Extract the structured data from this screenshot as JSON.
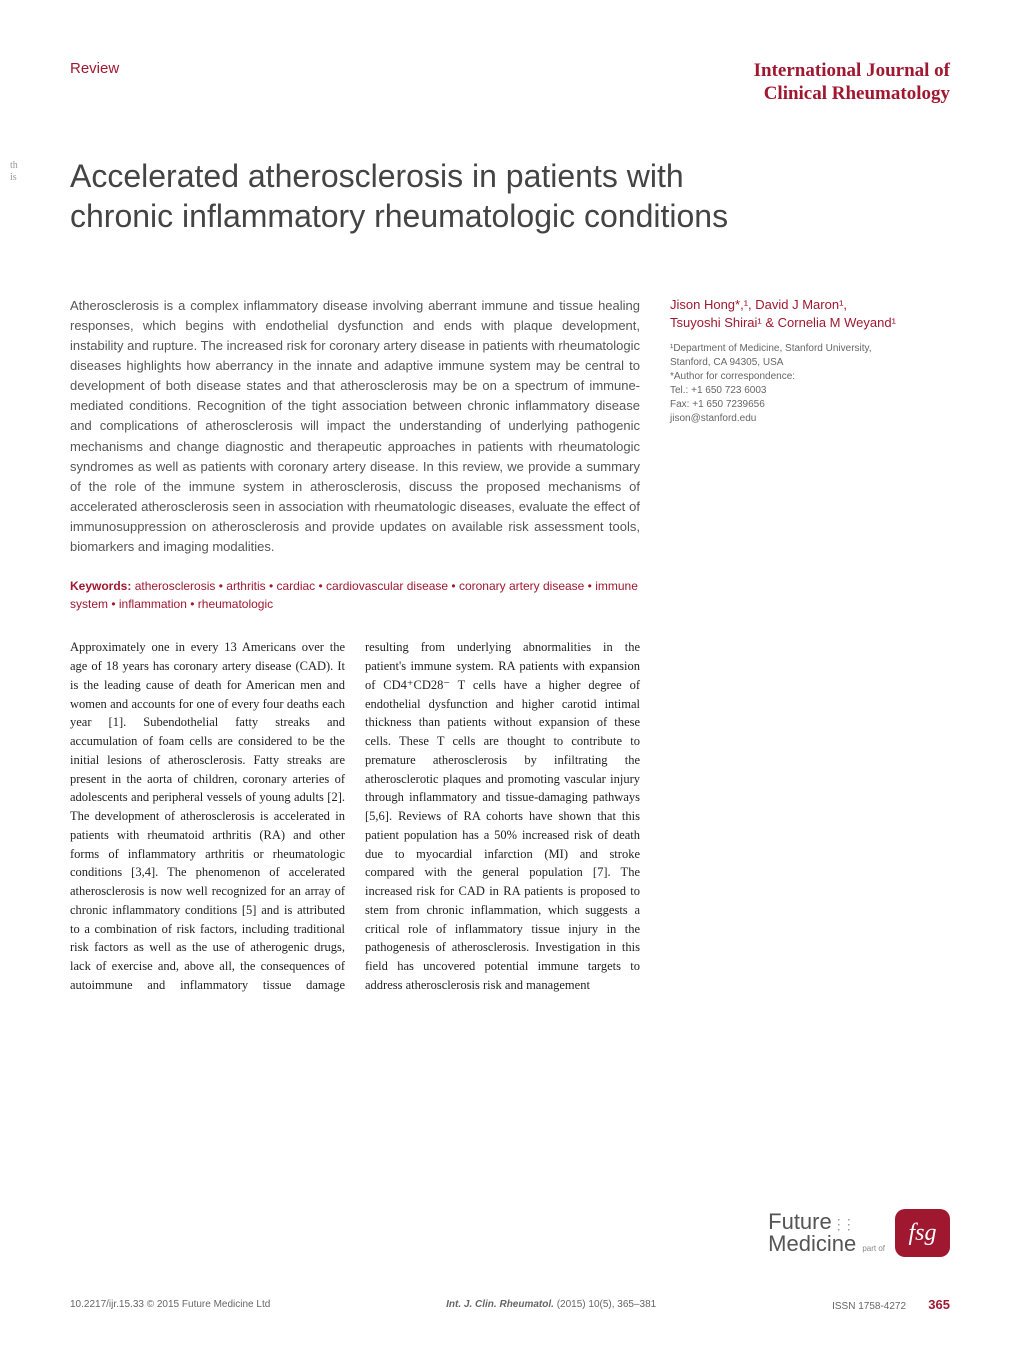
{
  "header": {
    "review_label": "Review",
    "journal_line1": "International Journal of",
    "journal_line2": "Clinical Rheumatology"
  },
  "side_text": {
    "line1": "th",
    "line2": "is"
  },
  "title": "Accelerated atherosclerosis in patients with chronic inflammatory rheumatologic conditions",
  "abstract": "Atherosclerosis is a complex inflammatory disease involving aberrant immune and tissue healing responses, which begins with endothelial dysfunction and ends with plaque development, instability and rupture. The increased risk for coronary artery disease in patients with rheumatologic diseases highlights how aberrancy in the innate and adaptive immune system may be central to development of both disease states and that atherosclerosis may be on a spectrum of immune-mediated conditions. Recognition of the tight association between chronic inflammatory disease and complications of atherosclerosis will impact the understanding of underlying pathogenic mechanisms and change diagnostic and therapeutic approaches in patients with rheumatologic syndromes as well as patients with coronary artery disease. In this review, we provide a summary of the role of the immune system in atherosclerosis, discuss the proposed mechanisms of accelerated atherosclerosis seen in association with rheumatologic diseases, evaluate the effect of immunosuppression on atherosclerosis and provide updates on available risk assessment tools, biomarkers and imaging modalities.",
  "keywords": {
    "label": "Keywords:",
    "text": "  atherosclerosis • arthritis • cardiac • cardiovascular disease • coronary artery disease • immune system • inflammation • rheumatologic"
  },
  "body": "Approximately one in every 13 Americans over the age of 18 years has coronary artery disease (CAD). It is the leading cause of death for American men and women and accounts for one of every four deaths each year [1]. Subendothelial fatty streaks and accumulation of foam cells are considered to be the initial lesions of atherosclerosis. Fatty streaks are present in the aorta of children, coronary arteries of adolescents and peripheral vessels of young adults [2]. The development of atherosclerosis is accelerated in patients with rheumatoid arthritis (RA) and other forms of inflammatory arthritis or rheumatologic conditions [3,4]. The phenomenon of accelerated atherosclerosis is now well recognized for an array of chronic inflammatory conditions [5] and is attributed to a combination of risk factors, including traditional risk factors as well as the use of atherogenic drugs, lack of exercise and, above all, the consequences of autoimmune and inflammatory tissue damage resulting from underlying abnormalities in the patient's immune system. RA patients with expansion of CD4⁺CD28⁻ T cells have a higher degree of endothelial dysfunction and higher carotid intimal thickness than patients without expansion of these cells. These T cells are thought to contribute to premature atherosclerosis by infiltrating the atherosclerotic plaques and promoting vascular injury through inflammatory and tissue-damaging pathways [5,6]. Reviews of RA cohorts have shown that this patient population has a 50% increased risk of death due to myocardial infarction (MI) and stroke compared with the general population [7]. The increased risk for CAD in RA patients is proposed to stem from chronic inflammation, which suggests a critical role of inflammatory tissue injury in the pathogenesis of atherosclerosis. Investigation in this field has uncovered potential immune targets to address atherosclerosis risk and management",
  "authors": "Jison Hong*,¹, David J Maron¹, Tsuyoshi Shirai¹ & Cornelia M Weyand¹",
  "affiliation": "¹Department of Medicine, Stanford University, Stanford, CA 94305, USA\n*Author for correspondence:\nTel.: +1 650 723 6003\nFax: +1 650 7239656\njison@stanford.edu",
  "logo": {
    "future": "Future",
    "medicine": "Medicine",
    "partof": "part of",
    "fsg": "fsg"
  },
  "footer": {
    "doi": "10.2217/ijr.15.33 © 2015 Future Medicine Ltd",
    "citation": "Int. J. Clin. Rheumatol. ",
    "citation_details": "(2015) 10(5), 365–381",
    "issn": "ISSN 1758-4272",
    "page": "365"
  }
}
